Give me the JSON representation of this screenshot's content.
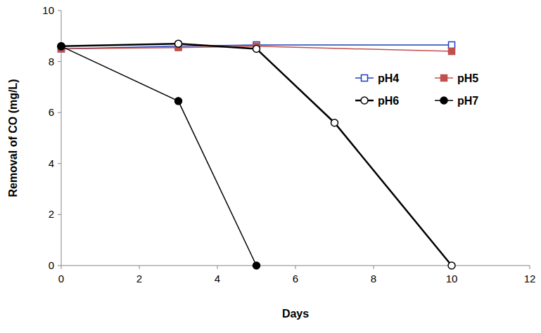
{
  "chart_data": {
    "type": "line",
    "x_label": "Days",
    "y_label": "Removal of CO  (mg/L)",
    "xlim": [
      0,
      12
    ],
    "xticks": [
      0,
      2,
      4,
      6,
      8,
      10,
      12
    ],
    "ylim": [
      0,
      10
    ],
    "yticks": [
      0,
      2,
      4,
      6,
      8,
      10
    ],
    "grid": false,
    "legend": "right",
    "series": [
      {
        "name": "pH4",
        "color": "#1f3fbf",
        "marker": "square-open",
        "line_style": "solid",
        "x": [
          0,
          3,
          5,
          10
        ],
        "values": [
          8.5,
          8.6,
          8.65,
          8.65
        ]
      },
      {
        "name": "pH5",
        "color": "#c0504d",
        "marker": "square",
        "line_style": "solid",
        "x": [
          0,
          3,
          5,
          10
        ],
        "values": [
          8.5,
          8.55,
          8.6,
          8.4
        ]
      },
      {
        "name": "pH6",
        "color": "#000000",
        "marker": "circle-open",
        "line_style": "solid",
        "x": [
          0,
          3,
          5,
          7,
          10
        ],
        "values": [
          8.6,
          8.7,
          8.5,
          5.6,
          0
        ]
      },
      {
        "name": "pH7",
        "color": "#000000",
        "marker": "circle",
        "line_style": "solid",
        "x": [
          0,
          3,
          5
        ],
        "values": [
          8.6,
          6.45,
          0
        ]
      }
    ]
  }
}
